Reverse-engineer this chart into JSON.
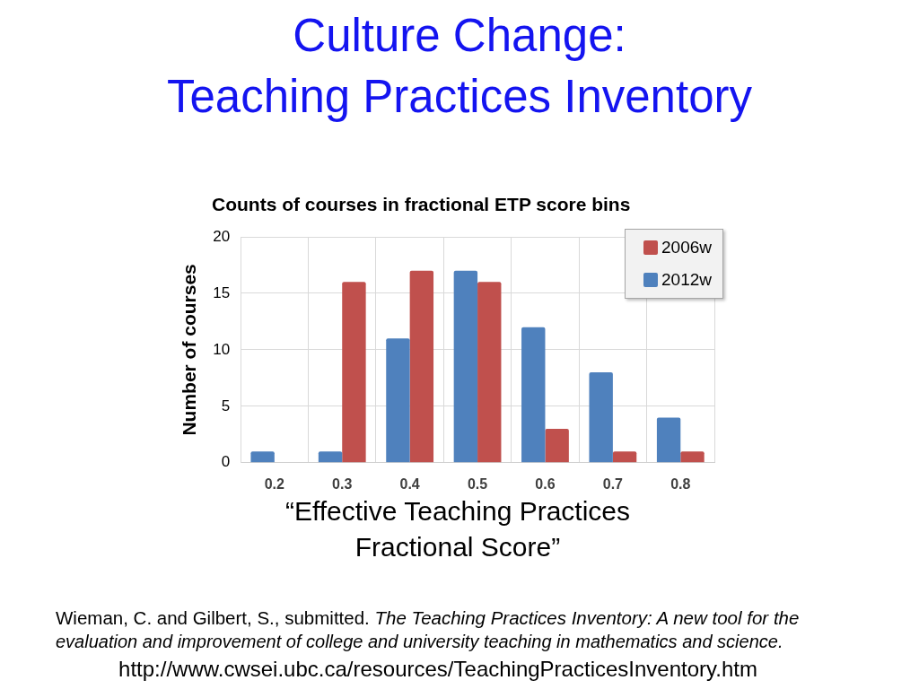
{
  "chart_data": {
    "type": "bar",
    "title": "Culture Change:\nTeaching Practices Inventory",
    "subtitle": "Counts of courses in fractional ETP score bins",
    "xlabel": "“Effective Teaching Practices Fractional Score”",
    "ylabel": "Number of courses",
    "categories": [
      "0.2",
      "0.3",
      "0.4",
      "0.5",
      "0.6",
      "0.7",
      "0.8"
    ],
    "series": [
      {
        "name": "2012w",
        "color": "#4f81bd",
        "values": [
          1,
          1,
          11,
          17,
          12,
          8,
          4
        ]
      },
      {
        "name": "2006w",
        "color": "#c0504d",
        "values": [
          0,
          16,
          17,
          16,
          3,
          1,
          1
        ]
      }
    ],
    "ylim": [
      0,
      20
    ],
    "yticks": [
      0,
      5,
      10,
      15,
      20
    ],
    "grid": true,
    "legend": "top right",
    "annotations": [
      "Wieman, C. and Gilbert, S., submitted.",
      "The Teaching Practices Inventory: A new tool for the",
      "evaluation and improvement of college and university teaching in mathematics and science.",
      "http://www.cwsei.ubc.ca/resources/TeachingPracticesInventory.htm"
    ]
  }
}
